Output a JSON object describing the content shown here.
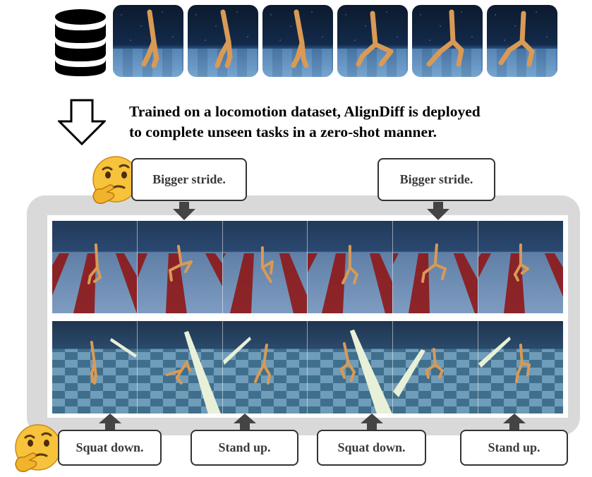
{
  "top_strip": {
    "frames": [
      "frame-1",
      "frame-2",
      "frame-3",
      "frame-4",
      "frame-5",
      "frame-6"
    ]
  },
  "caption": {
    "line1": "Trained on a locomotion dataset, AlignDiff is deployed",
    "line2": "to complete unseen tasks in a zero-shot manner."
  },
  "instructions": {
    "top": [
      "Bigger stride.",
      "Bigger stride."
    ],
    "bottom": [
      "Squat down.",
      "Stand up.",
      "Squat down.",
      "Stand up."
    ]
  },
  "icons": {
    "database": "database-icon",
    "arrow": "down-arrow-icon",
    "thinking": "thinking-face-icon"
  },
  "colors": {
    "panel": "#d9d9d9",
    "arrow": "#444444",
    "robot": "#d99a55",
    "emoji": "#f7c23c"
  }
}
